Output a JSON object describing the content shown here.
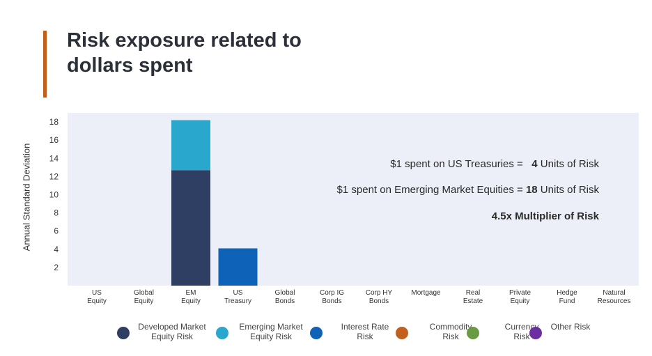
{
  "title_lines": [
    "Risk exposure related to",
    "dollars spent"
  ],
  "colors": {
    "accent": "#c0601a",
    "plot_bg": "#eceff7",
    "developed": "#2e3f63",
    "emerging": "#2aa7cc",
    "interest": "#0e63b9",
    "commodity": "#c2601d",
    "currency": "#6a9b42",
    "other": "#6b2fa0"
  },
  "annotations": [
    {
      "pre": "$1 spent on US Treasuries =   ",
      "bold": "4",
      "post": " Units of Risk"
    },
    {
      "pre": "$1 spent on Emerging Market Equities = ",
      "bold": "18",
      "post": " Units of Risk"
    },
    {
      "pre": "",
      "bold": "4.5x Multiplier of Risk",
      "post": ""
    }
  ],
  "chart_data": {
    "type": "bar",
    "stacked": true,
    "ylabel": "Annual Standard Deviation",
    "ylim": [
      0,
      19
    ],
    "yticks": [
      2,
      4,
      6,
      8,
      10,
      12,
      14,
      16,
      18
    ],
    "categories": [
      [
        "US",
        "Equity"
      ],
      [
        "Global",
        "Equity"
      ],
      [
        "EM",
        "Equity"
      ],
      [
        "US",
        "Treasury"
      ],
      [
        "Global",
        "Bonds"
      ],
      [
        "Corp IG",
        "Bonds"
      ],
      [
        "Corp HY",
        "Bonds"
      ],
      [
        "Mortgage"
      ],
      [
        "Real",
        "Estate"
      ],
      [
        "Private",
        "Equity"
      ],
      [
        "Hedge",
        "Fund"
      ],
      [
        "Natural",
        "Resources"
      ]
    ],
    "series": [
      {
        "name": "Developed Market Equity Risk",
        "color": "#2e3f63",
        "values": [
          0,
          0,
          12.7,
          0,
          0,
          0,
          0,
          0,
          0,
          0,
          0,
          0
        ]
      },
      {
        "name": "Emerging Market Equity Risk",
        "color": "#2aa7cc",
        "values": [
          0,
          0,
          5.5,
          0,
          0,
          0,
          0,
          0,
          0,
          0,
          0,
          0
        ]
      },
      {
        "name": "Interest Rate Risk",
        "color": "#0e63b9",
        "values": [
          0,
          0,
          0,
          4.1,
          0,
          0,
          0,
          0,
          0,
          0,
          0,
          0
        ]
      },
      {
        "name": "Commodity Risk",
        "color": "#c2601d",
        "values": [
          0,
          0,
          0,
          0,
          0,
          0,
          0,
          0,
          0,
          0,
          0,
          0
        ]
      },
      {
        "name": "Currency Risk",
        "color": "#6a9b42",
        "values": [
          0,
          0,
          0,
          0,
          0,
          0,
          0,
          0,
          0,
          0,
          0,
          0
        ]
      },
      {
        "name": "Other Risk",
        "color": "#6b2fa0",
        "values": [
          0,
          0,
          0,
          0,
          0,
          0,
          0,
          0,
          0,
          0,
          0,
          0
        ]
      }
    ],
    "legend": [
      {
        "lines": [
          "Developed Market",
          "Equity Risk"
        ],
        "color": "#2e3f63"
      },
      {
        "lines": [
          "Emerging Market",
          "Equity Risk"
        ],
        "color": "#2aa7cc"
      },
      {
        "lines": [
          "Interest Rate",
          "Risk"
        ],
        "color": "#0e63b9"
      },
      {
        "lines": [
          "Commodity",
          "Risk"
        ],
        "color": "#c2601d"
      },
      {
        "lines": [
          "Currency",
          "Risk"
        ],
        "color": "#6a9b42"
      },
      {
        "lines": [
          "Other Risk"
        ],
        "color": "#6b2fa0"
      }
    ],
    "legend_position": "bottom"
  }
}
